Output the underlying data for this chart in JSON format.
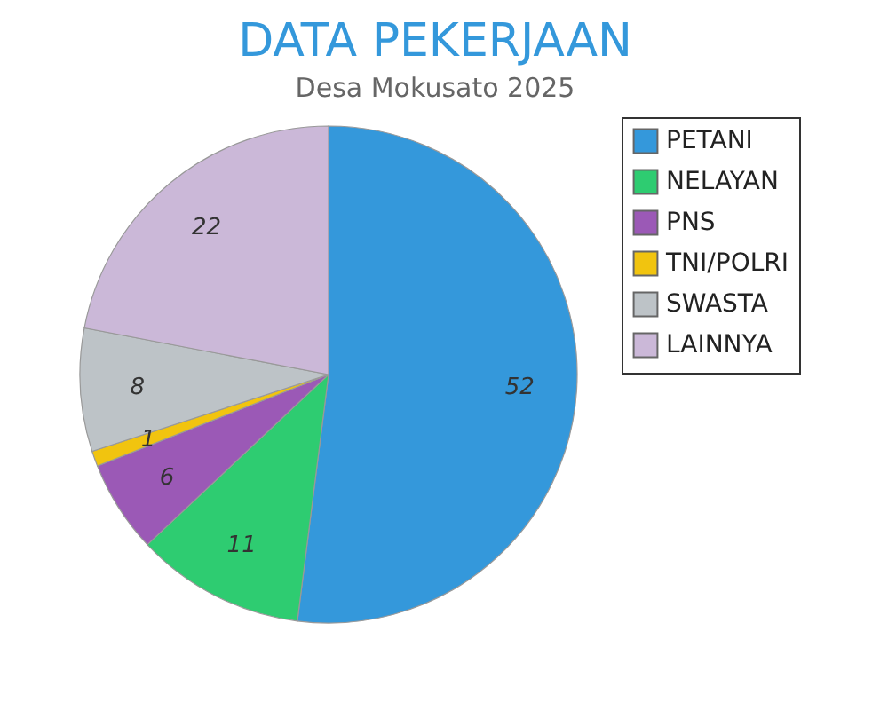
{
  "chart_data": {
    "type": "pie",
    "title": "DATA PEKERJAAN",
    "subtitle": "Desa Mokusato 2025",
    "categories": [
      "PETANI",
      "NELAYAN",
      "PNS",
      "TNI/POLRI",
      "SWASTA",
      "LAINNYA"
    ],
    "values": [
      52,
      11,
      6,
      1,
      8,
      22
    ],
    "colors": [
      "#3498db",
      "#2ecc71",
      "#9b59b6",
      "#f1c40f",
      "#bdc3c7",
      "#cbb8d8"
    ],
    "data_labels": true,
    "legend": "right"
  }
}
